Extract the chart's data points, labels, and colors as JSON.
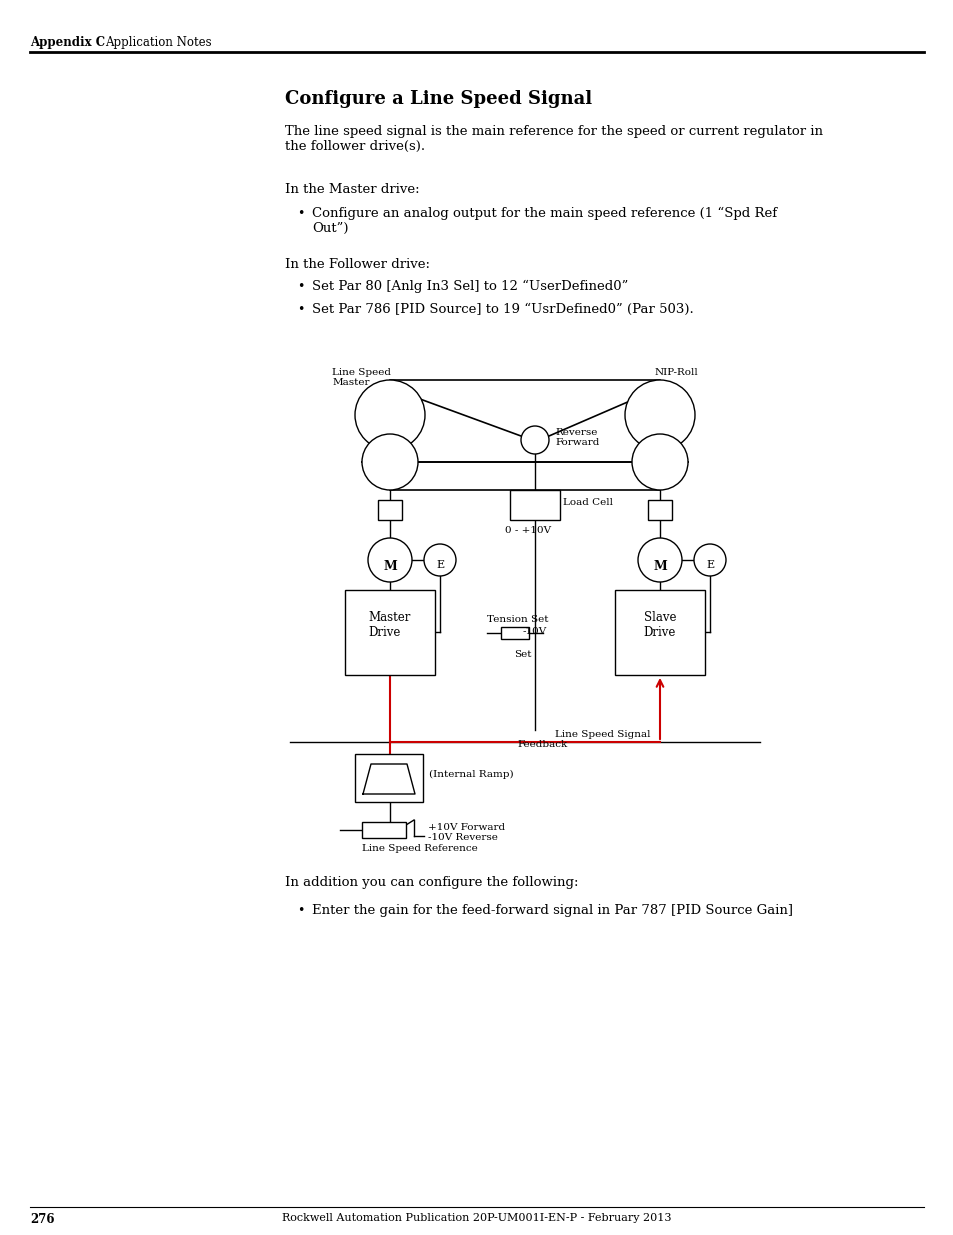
{
  "page_title": "Configure a Line Speed Signal",
  "header_left": "Appendix C",
  "header_right": "Application Notes",
  "footer_page": "276",
  "footer_center": "Rockwell Automation Publication 20P-UM001I-EN-P - February 2013",
  "body_text1": "The line speed signal is the main reference for the speed or current regulator in\nthe follower drive(s).",
  "body_text2": "In the Master drive:",
  "body_text3": "In the Follower drive:",
  "body_text4": "In addition you can configure the following:",
  "bullet_master1": "Configure an analog output for the main speed reference (1 “Spd Ref\nOut”)",
  "bullet_follower1": "Set Par 80 [Anlg In3 Sel] to 12 “UserDefined0”",
  "bullet_follower2": "Set Par 786 [PID Source] to 19 “UsrDefined0” (Par 503).",
  "bullet_addition1": "Enter the gain for the feed-forward signal in Par 787 [PID Source Gain]",
  "lbl_line_speed_master": "Line Speed\nMaster",
  "lbl_nip_roll": "NIP-Roll",
  "lbl_reverse_forward": "Reverse\nForward",
  "lbl_load_cell": "Load Cell",
  "lbl_voltage": "0 - +10V",
  "lbl_tension_set": "Tension Set",
  "lbl_minus10v": "-10V",
  "lbl_set": "Set",
  "lbl_feedback": "Feedback",
  "lbl_master_drive": "Master\nDrive",
  "lbl_slave_drive": "Slave\nDrive",
  "lbl_M": "M",
  "lbl_E": "E",
  "lbl_internal_ramp": "(Internal Ramp)",
  "lbl_line_speed_signal": "Line Speed Signal",
  "lbl_plus10v": "+10V Forward",
  "lbl_minus10v_rev": "-10V Reverse",
  "lbl_line_speed_ref": "Line Speed Reference",
  "bg_color": "#ffffff",
  "red_color": "#cc0000"
}
